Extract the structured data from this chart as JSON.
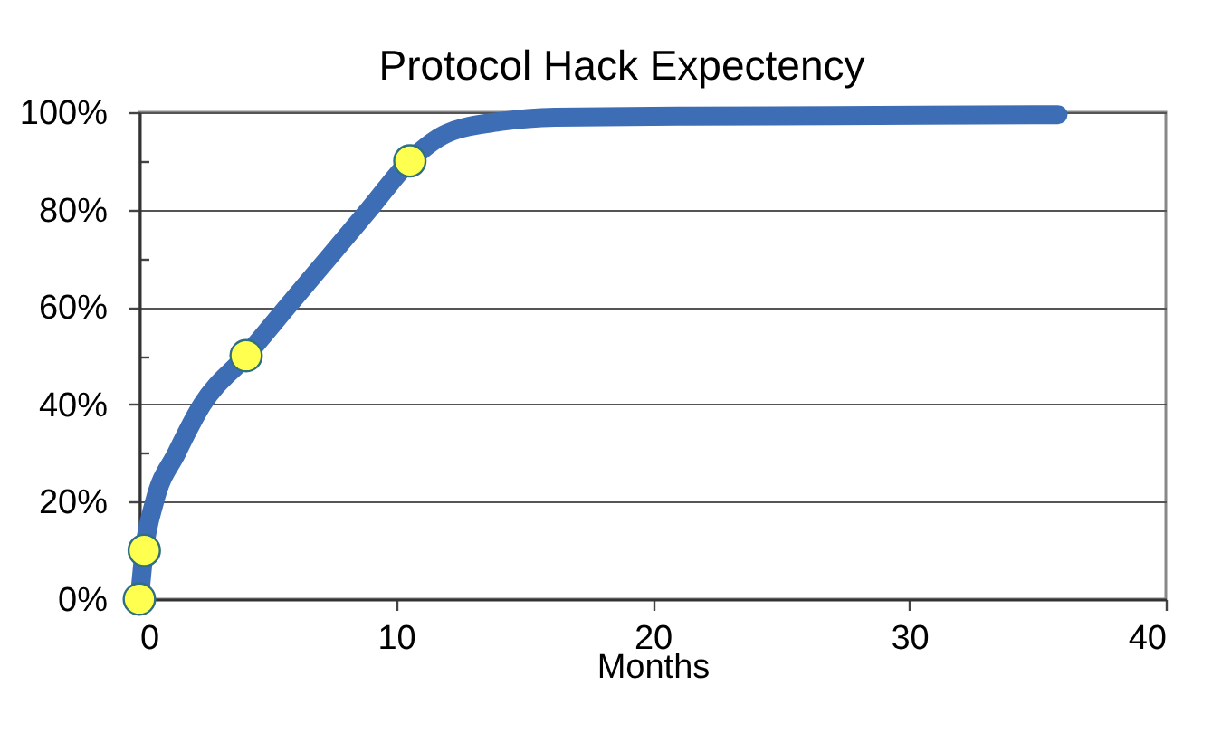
{
  "chart_data": {
    "type": "line",
    "title": "Protocol Hack Expectency",
    "xlabel": "Months",
    "xlim": [
      0,
      40
    ],
    "xticks": [
      0,
      10,
      20,
      30,
      40
    ],
    "ylim": [
      0,
      100
    ],
    "yticks": [
      {
        "value": 0,
        "label": "0%"
      },
      {
        "value": 10,
        "label": null
      },
      {
        "value": 20,
        "label": "20%"
      },
      {
        "value": 30,
        "label": null
      },
      {
        "value": 40,
        "label": "40%"
      },
      {
        "value": 50,
        "label": null
      },
      {
        "value": 60,
        "label": "60%"
      },
      {
        "value": 70,
        "label": null
      },
      {
        "value": 80,
        "label": "80%"
      },
      {
        "value": 90,
        "label": null
      },
      {
        "value": 100,
        "label": "100%"
      }
    ],
    "grid": "y",
    "series": [
      {
        "color": "#3d6db4",
        "x": [
          0,
          0.19,
          0.59,
          1.45,
          2.45,
          4.16,
          5.75,
          7.35,
          8.95,
          10.54,
          12,
          14.1,
          16.2,
          21,
          27,
          35.8
        ],
        "values": [
          0,
          10,
          20,
          30,
          40,
          50,
          60,
          70,
          80,
          90,
          95.7,
          98.1,
          99,
          99.2,
          99.3,
          99.5
        ]
      },
      {
        "type": "scatter",
        "color": "#ffff50",
        "marker": "circle",
        "x": [
          0,
          0.19,
          4.16,
          10.54
        ],
        "values": [
          0,
          10,
          50,
          90
        ]
      }
    ]
  }
}
